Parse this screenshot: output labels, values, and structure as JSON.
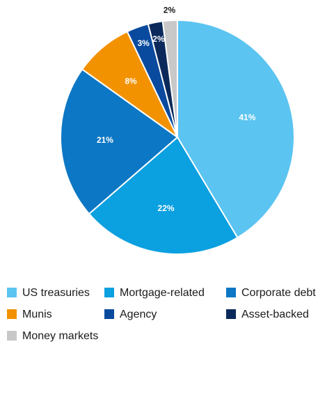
{
  "chart_data": {
    "type": "pie",
    "categories": [
      "US treasuries",
      "Mortgage-related",
      "Corporate debt",
      "Munis",
      "Agency",
      "Asset-backed",
      "Money markets"
    ],
    "values": [
      41,
      22,
      21,
      8,
      3,
      2,
      2
    ],
    "value_labels": [
      "41%",
      "22%",
      "21%",
      "8%",
      "3%",
      "2%",
      "2%"
    ],
    "colors": [
      "#5bc4f1",
      "#0ba0e0",
      "#0c77c4",
      "#f39200",
      "#0a4a9e",
      "#0b2a5b",
      "#c8c8c8"
    ],
    "legend": "bottom"
  }
}
